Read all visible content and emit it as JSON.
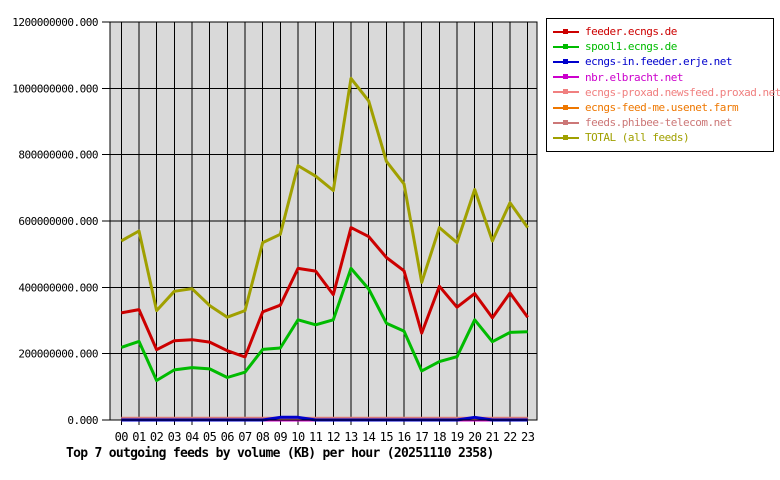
{
  "chart_data": {
    "type": "line",
    "title": "Top 7 outgoing feeds by volume (KB) per hour (20251110 2358)",
    "xlabel": "",
    "ylabel": "",
    "x_categories": [
      "00",
      "01",
      "02",
      "03",
      "04",
      "05",
      "06",
      "07",
      "08",
      "09",
      "10",
      "11",
      "12",
      "13",
      "14",
      "15",
      "16",
      "17",
      "18",
      "19",
      "20",
      "21",
      "22",
      "23"
    ],
    "ylim": [
      0,
      1200000000
    ],
    "ytick_values": [
      0,
      200000000,
      400000000,
      600000000,
      800000000,
      1000000000,
      1200000000
    ],
    "ytick_labels": [
      "0.000",
      "200000000.000",
      "400000000.000",
      "600000000.000",
      "800000000.000",
      "1000000000.000",
      "1200000000.000"
    ],
    "grid": true,
    "legend_position": "top-right",
    "plot_bg_color": "#d9d9d9",
    "grid_color": "#000000",
    "draw_order": [
      4,
      5,
      3,
      6,
      2,
      1,
      0,
      7
    ],
    "series": [
      {
        "name": "feeder.ecngs.de",
        "color": "#cc0000",
        "values": [
          323000000,
          333000000,
          212000000,
          239000000,
          242000000,
          235000000,
          209000000,
          190000000,
          326000000,
          346000000,
          457000000,
          449000000,
          378000000,
          580000000,
          553000000,
          490000000,
          450000000,
          262000000,
          403000000,
          340000000,
          381000000,
          308000000,
          383000000,
          310000000
        ]
      },
      {
        "name": "spool1.ecngs.de",
        "color": "#00bb00",
        "values": [
          219000000,
          237000000,
          119000000,
          151000000,
          158000000,
          154000000,
          128000000,
          144000000,
          213000000,
          217000000,
          302000000,
          287000000,
          302000000,
          457000000,
          395000000,
          292000000,
          268000000,
          148000000,
          176000000,
          191000000,
          302000000,
          236000000,
          264000000,
          266000000
        ]
      },
      {
        "name": "ecngs-in.feeder.erje.net",
        "color": "#0000cc",
        "values": [
          0,
          0,
          0,
          0,
          0,
          0,
          0,
          0,
          0,
          8000000,
          8000000,
          0,
          0,
          0,
          0,
          0,
          0,
          0,
          0,
          0,
          8000000,
          0,
          0,
          0
        ]
      },
      {
        "name": "nbr.elbracht.net",
        "color": "#cc00cc",
        "values": [
          0,
          0,
          0,
          0,
          0,
          0,
          0,
          0,
          0,
          0,
          0,
          0,
          0,
          0,
          0,
          0,
          0,
          0,
          0,
          0,
          0,
          0,
          0,
          0
        ]
      },
      {
        "name": "ecngs-proxad.newsfeed.proxad.net",
        "color": "#f08080",
        "values": [
          5000000,
          5000000,
          5000000,
          5000000,
          5000000,
          5000000,
          5000000,
          5000000,
          5000000,
          5000000,
          5000000,
          5000000,
          5000000,
          5000000,
          5000000,
          5000000,
          5000000,
          5000000,
          5000000,
          5000000,
          5000000,
          5000000,
          5000000,
          5000000
        ]
      },
      {
        "name": "ecngs-feed-me.usenet.farm",
        "color": "#ee7700",
        "values": [
          0,
          0,
          0,
          0,
          0,
          0,
          0,
          0,
          0,
          0,
          0,
          0,
          0,
          0,
          0,
          0,
          0,
          0,
          0,
          0,
          0,
          0,
          0,
          0
        ]
      },
      {
        "name": "feeds.phibee-telecom.net",
        "color": "#cc7777",
        "values": [
          4000000,
          4000000,
          4000000,
          4000000,
          4000000,
          4000000,
          4000000,
          4000000,
          4000000,
          4000000,
          4000000,
          4000000,
          4000000,
          4000000,
          4000000,
          4000000,
          4000000,
          4000000,
          4000000,
          4000000,
          4000000,
          4000000,
          4000000,
          4000000
        ]
      },
      {
        "name": "TOTAL (all feeds)",
        "color": "#a0a000",
        "values": [
          540000000,
          570000000,
          330000000,
          388000000,
          396000000,
          345000000,
          310000000,
          330000000,
          535000000,
          560000000,
          767000000,
          735000000,
          692000000,
          1030000000,
          962000000,
          780000000,
          712000000,
          415000000,
          580000000,
          535000000,
          695000000,
          540000000,
          655000000,
          580000000
        ]
      }
    ]
  }
}
